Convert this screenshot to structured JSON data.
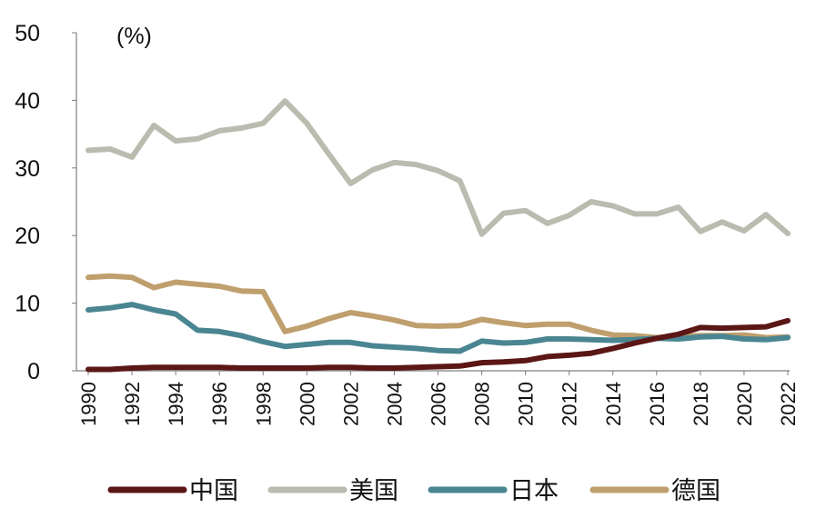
{
  "chart_data": {
    "type": "line",
    "unit_label": "(%)",
    "ylim": [
      0,
      50
    ],
    "yticks": [
      "0",
      "10",
      "20",
      "30",
      "40",
      "50"
    ],
    "xlim": [
      1990,
      2022
    ],
    "xticks": [
      "1990",
      "1992",
      "1994",
      "1996",
      "1998",
      "2000",
      "2002",
      "2004",
      "2006",
      "2008",
      "2010",
      "2012",
      "2014",
      "2016",
      "2018",
      "2020",
      "2022"
    ],
    "x": [
      1990,
      1991,
      1992,
      1993,
      1994,
      1995,
      1996,
      1997,
      1998,
      1999,
      2000,
      2001,
      2002,
      2003,
      2004,
      2005,
      2006,
      2007,
      2008,
      2009,
      2010,
      2011,
      2012,
      2013,
      2014,
      2015,
      2016,
      2017,
      2018,
      2019,
      2020,
      2021,
      2022
    ],
    "grid": false,
    "legend_position": "bottom",
    "series": [
      {
        "name": "中国",
        "color": "#5b1616",
        "values": [
          0.2,
          0.2,
          0.4,
          0.5,
          0.5,
          0.5,
          0.5,
          0.4,
          0.4,
          0.4,
          0.4,
          0.5,
          0.5,
          0.4,
          0.4,
          0.5,
          0.6,
          0.7,
          1.2,
          1.3,
          1.5,
          2.1,
          2.3,
          2.6,
          3.3,
          4.1,
          4.8,
          5.4,
          6.4,
          6.3,
          6.4,
          6.5,
          7.4
        ]
      },
      {
        "name": "美国",
        "color": "#babcaf",
        "values": [
          32.6,
          32.8,
          31.6,
          36.3,
          34.0,
          34.3,
          35.5,
          35.9,
          36.6,
          39.9,
          36.6,
          32.1,
          27.7,
          29.7,
          30.8,
          30.5,
          29.6,
          28.1,
          20.2,
          23.3,
          23.7,
          21.8,
          23.0,
          25.0,
          24.4,
          23.2,
          23.2,
          24.2,
          20.6,
          22.0,
          20.7,
          23.1,
          20.3
        ]
      },
      {
        "name": "日本",
        "color": "#4a8592",
        "values": [
          9.0,
          9.3,
          9.8,
          9.0,
          8.4,
          6.0,
          5.8,
          5.2,
          4.3,
          3.6,
          3.9,
          4.2,
          4.2,
          3.7,
          3.5,
          3.3,
          3.0,
          2.9,
          4.4,
          4.1,
          4.2,
          4.7,
          4.7,
          4.6,
          4.5,
          4.6,
          4.8,
          4.7,
          5.0,
          5.1,
          4.7,
          4.6,
          4.9
        ]
      },
      {
        "name": "德国",
        "color": "#bf9f6d",
        "values": [
          13.8,
          14.0,
          13.8,
          12.3,
          13.1,
          12.8,
          12.5,
          11.8,
          11.7,
          5.8,
          6.6,
          7.7,
          8.6,
          8.1,
          7.5,
          6.7,
          6.6,
          6.7,
          7.6,
          7.1,
          6.7,
          6.9,
          6.9,
          6.0,
          5.3,
          5.2,
          4.9,
          5.1,
          5.2,
          5.2,
          5.3,
          4.9,
          5.0
        ]
      }
    ]
  }
}
